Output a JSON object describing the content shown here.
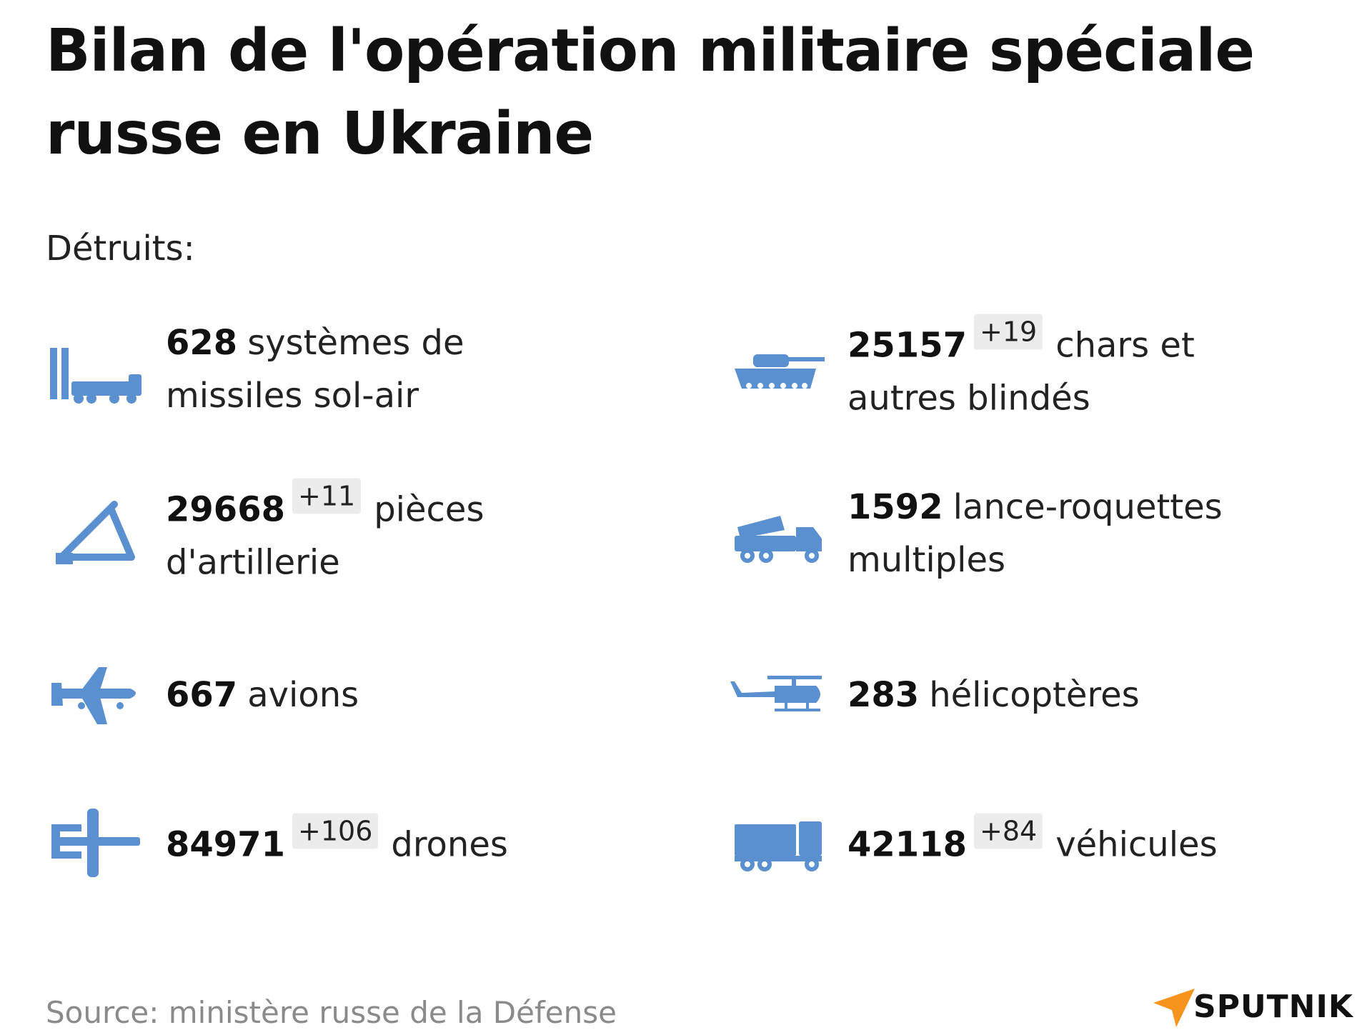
{
  "title": "Bilan de l'opération militaire spéciale russe en Ukraine",
  "subtitle": "Détruits:",
  "icon_color": "#5a8fd0",
  "stats": [
    {
      "icon": "sam-launcher-icon",
      "number": "628",
      "label": "systèmes de missiles sol-air"
    },
    {
      "icon": "tank-icon",
      "number": "25157",
      "delta": "+19",
      "label": "chars et autres blindés"
    },
    {
      "icon": "artillery-icon",
      "number": "29668",
      "delta": "+11",
      "label": "pièces d'artillerie"
    },
    {
      "icon": "rocket-launcher-truck-icon",
      "number": "1592",
      "label": "lance-roquettes multiples"
    },
    {
      "icon": "airplane-icon",
      "number": "667",
      "label": "avions"
    },
    {
      "icon": "helicopter-icon",
      "number": "283",
      "label": "hélicoptères"
    },
    {
      "icon": "drone-icon",
      "number": "84971",
      "delta": "+106",
      "label": "drones"
    },
    {
      "icon": "truck-icon",
      "number": "42118",
      "delta": "+84",
      "label": "véhicules"
    }
  ],
  "source": "Source: ministère russe de la Défense",
  "logo": {
    "text": "SPUTNIK",
    "color": "#f7941d"
  }
}
